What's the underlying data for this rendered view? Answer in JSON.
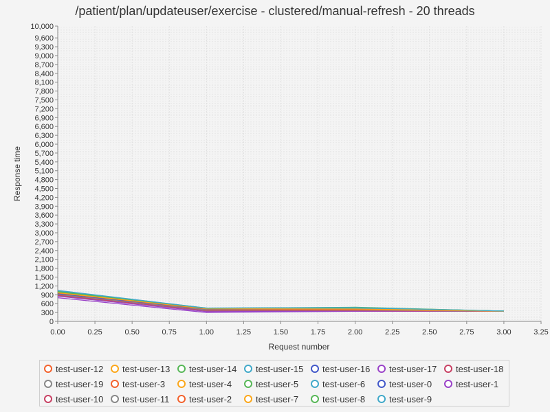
{
  "chart_data": {
    "type": "line",
    "title": "/patient/plan/updateuser/exercise - clustered/manual-refresh - 20 threads",
    "xlabel": "Request number",
    "ylabel": "Response time",
    "xlim": [
      0,
      3.25
    ],
    "ylim": [
      0,
      10000
    ],
    "x_ticks": [
      "0.00",
      "0.25",
      "0.50",
      "0.75",
      "1.00",
      "1.25",
      "1.50",
      "1.75",
      "2.00",
      "2.25",
      "2.50",
      "2.75",
      "3.00",
      "3.25"
    ],
    "y_ticks": [
      "0",
      "300",
      "600",
      "900",
      "1,200",
      "1,500",
      "1,800",
      "2,100",
      "2,400",
      "2,700",
      "3,000",
      "3,300",
      "3,600",
      "3,900",
      "4,200",
      "4,500",
      "4,800",
      "5,100",
      "5,400",
      "5,700",
      "6,000",
      "6,300",
      "6,600",
      "6,900",
      "7,200",
      "7,500",
      "7,800",
      "8,100",
      "8,400",
      "8,700",
      "9,000",
      "9,300",
      "9,600",
      "10,000"
    ],
    "grid": true,
    "legend_position": "bottom",
    "x": [
      0,
      1,
      2,
      3
    ],
    "series": [
      {
        "name": "test-user-12",
        "color": "#f3622d",
        "values": [
          950,
          400,
          380,
          340
        ]
      },
      {
        "name": "test-user-13",
        "color": "#fba71b",
        "values": [
          920,
          420,
          400,
          345
        ]
      },
      {
        "name": "test-user-14",
        "color": "#57b757",
        "values": [
          1000,
          440,
          460,
          350
        ]
      },
      {
        "name": "test-user-15",
        "color": "#41a9c9",
        "values": [
          1050,
          450,
          470,
          350
        ]
      },
      {
        "name": "test-user-16",
        "color": "#4258c9",
        "values": [
          980,
          430,
          420,
          345
        ]
      },
      {
        "name": "test-user-17",
        "color": "#9a42c8",
        "values": [
          800,
          300,
          340,
          340
        ]
      },
      {
        "name": "test-user-18",
        "color": "#c84164",
        "values": [
          900,
          350,
          360,
          340
        ]
      },
      {
        "name": "test-user-19",
        "color": "#888888",
        "values": [
          870,
          360,
          370,
          340
        ]
      },
      {
        "name": "test-user-3",
        "color": "#f3622d",
        "values": [
          940,
          380,
          390,
          345
        ]
      },
      {
        "name": "test-user-4",
        "color": "#fba71b",
        "values": [
          960,
          400,
          410,
          345
        ]
      },
      {
        "name": "test-user-5",
        "color": "#57b757",
        "values": [
          990,
          430,
          440,
          350
        ]
      },
      {
        "name": "test-user-6",
        "color": "#41a9c9",
        "values": [
          1020,
          440,
          450,
          350
        ]
      },
      {
        "name": "test-user-0",
        "color": "#4258c9",
        "values": [
          930,
          410,
          400,
          345
        ]
      },
      {
        "name": "test-user-1",
        "color": "#9a42c8",
        "values": [
          850,
          330,
          350,
          340
        ]
      },
      {
        "name": "test-user-10",
        "color": "#c84164",
        "values": [
          880,
          370,
          360,
          340
        ]
      },
      {
        "name": "test-user-11",
        "color": "#888888",
        "values": [
          910,
          390,
          380,
          340
        ]
      },
      {
        "name": "test-user-2",
        "color": "#f3622d",
        "values": [
          960,
          420,
          400,
          345
        ]
      },
      {
        "name": "test-user-7",
        "color": "#fba71b",
        "values": [
          970,
          430,
          420,
          345
        ]
      },
      {
        "name": "test-user-8",
        "color": "#57b757",
        "values": [
          1010,
          445,
          480,
          350
        ]
      },
      {
        "name": "test-user-9",
        "color": "#41a9c9",
        "values": [
          1040,
          450,
          465,
          350
        ]
      }
    ]
  }
}
